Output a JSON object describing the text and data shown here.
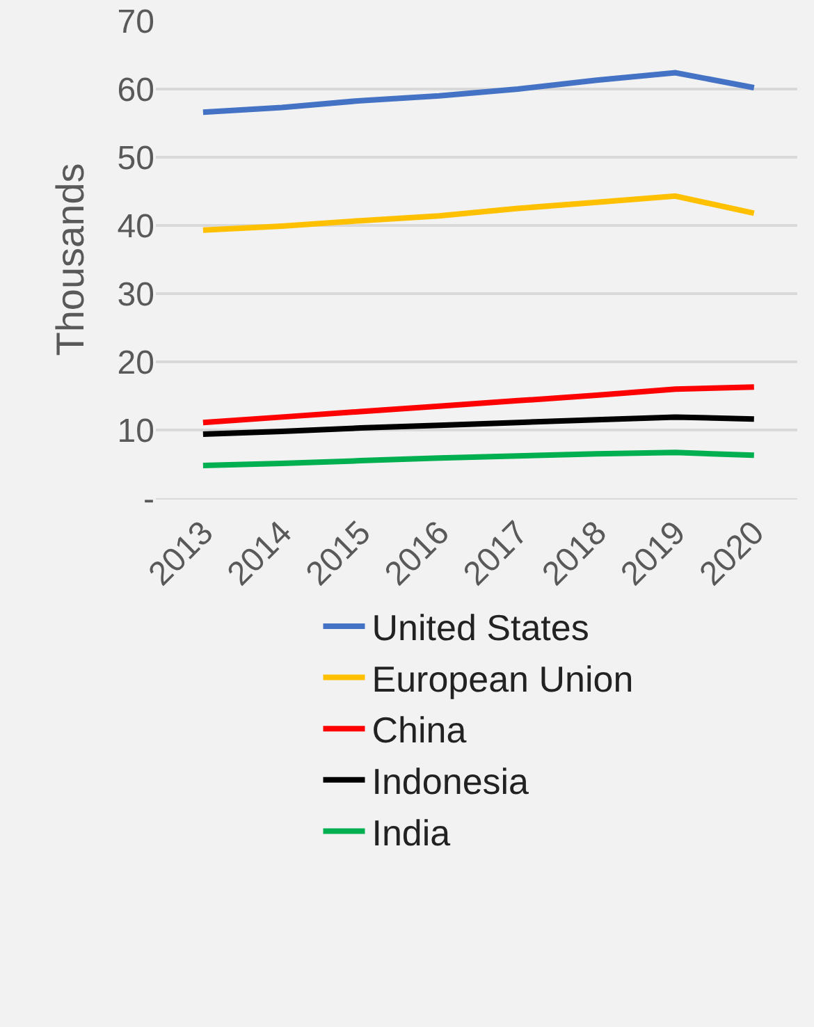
{
  "chart_data": {
    "type": "line",
    "ylabel": "Thousands",
    "categories": [
      "2013",
      "2014",
      "2015",
      "2016",
      "2017",
      "2018",
      "2019",
      "2020"
    ],
    "series": [
      {
        "name": "United States",
        "color": "#4472c4",
        "values": [
          56.6,
          57.3,
          58.3,
          59,
          60,
          61.3,
          62.4,
          60.2
        ]
      },
      {
        "name": "European Union",
        "color": "#ffc000",
        "values": [
          39.3,
          39.9,
          40.7,
          41.4,
          42.5,
          43.4,
          44.3,
          41.8
        ]
      },
      {
        "name": "China",
        "color": "#ff0000",
        "values": [
          11.1,
          11.9,
          12.7,
          13.5,
          14.3,
          15.1,
          16,
          16.3
        ]
      },
      {
        "name": "Indonesia",
        "color": "#000000",
        "values": [
          9.4,
          9.8,
          10.3,
          10.7,
          11.1,
          11.5,
          11.9,
          11.6
        ]
      },
      {
        "name": "India",
        "color": "#00b050",
        "values": [
          4.8,
          5.1,
          5.5,
          5.9,
          6.2,
          6.5,
          6.7,
          6.3
        ]
      }
    ],
    "ylim": [
      0,
      70
    ],
    "yticks": [
      {
        "value": 0,
        "label": "-"
      },
      10,
      20,
      30,
      40,
      50,
      60,
      70
    ],
    "grid": "y",
    "legend": "bottom",
    "marker": "none",
    "line_style": "solid"
  }
}
